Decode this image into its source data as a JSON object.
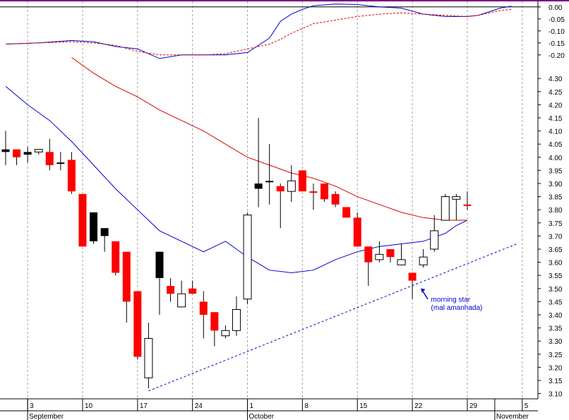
{
  "colors": {
    "background": "#ffffff",
    "grid": "#a0a0a0",
    "axis": "#000000",
    "top_border": "#800080",
    "up_candle": "#ffffff",
    "down_candle": "#ff0000",
    "neutral_candle": "#000000",
    "blue_line": "#0000cc",
    "red_line": "#dd0000",
    "trendline": "#0000cc",
    "annotation": "#0000cc"
  },
  "chart_data": [
    {
      "type": "line",
      "panel": "indicator",
      "ylim": [
        -0.23,
        0.02
      ],
      "y_ticks": [
        "0.00",
        "-0.05",
        "-0.10",
        "-0.15",
        "-0.20"
      ],
      "y_tick_values": [
        0.0,
        -0.05,
        -0.1,
        -0.15,
        -0.2
      ],
      "baseline": 0.0,
      "series": [
        {
          "style": "solid",
          "color": "#0000cc",
          "x": [
            0,
            3,
            6,
            8,
            10,
            12,
            14,
            16,
            17,
            18,
            20,
            22,
            24,
            25,
            26,
            27,
            28,
            30,
            32,
            34,
            36,
            38,
            40,
            42,
            43,
            44,
            45,
            46
          ],
          "y": [
            -0.155,
            -0.15,
            -0.14,
            -0.145,
            -0.165,
            -0.175,
            -0.215,
            -0.2,
            -0.2,
            -0.2,
            -0.2,
            -0.19,
            -0.13,
            -0.06,
            -0.03,
            -0.01,
            0.005,
            0.012,
            0.01,
            0.0,
            -0.005,
            -0.03,
            -0.04,
            -0.04,
            -0.035,
            -0.02,
            -0.005,
            0.003
          ]
        },
        {
          "style": "dashed",
          "color": "#dd0000",
          "x": [
            0,
            3,
            6,
            8,
            10,
            12,
            14,
            16,
            17,
            18,
            20,
            22,
            24,
            25,
            26,
            27,
            28,
            30,
            32,
            34,
            36,
            38,
            40,
            42,
            43,
            44,
            45,
            46
          ],
          "y": [
            -0.155,
            -0.15,
            -0.145,
            -0.15,
            -0.16,
            -0.185,
            -0.2,
            -0.2,
            -0.2,
            -0.2,
            -0.195,
            -0.175,
            -0.155,
            -0.135,
            -0.11,
            -0.09,
            -0.07,
            -0.055,
            -0.04,
            -0.03,
            -0.025,
            -0.03,
            -0.035,
            -0.04,
            -0.035,
            -0.025,
            -0.015,
            -0.01
          ]
        }
      ]
    },
    {
      "type": "candlestick",
      "panel": "price",
      "ylim": [
        3.08,
        4.33
      ],
      "y_ticks": [
        "4.30",
        "4.25",
        "4.20",
        "4.15",
        "4.10",
        "4.05",
        "4.00",
        "3.95",
        "3.90",
        "3.85",
        "3.80",
        "3.75",
        "3.70",
        "3.65",
        "3.60",
        "3.55",
        "3.50",
        "3.45",
        "3.40",
        "3.35",
        "3.30",
        "3.25",
        "3.20",
        "3.15",
        "3.10"
      ],
      "y_tick_values": [
        4.3,
        4.25,
        4.2,
        4.15,
        4.1,
        4.05,
        4.0,
        3.95,
        3.9,
        3.85,
        3.8,
        3.75,
        3.7,
        3.65,
        3.6,
        3.55,
        3.5,
        3.45,
        3.4,
        3.35,
        3.3,
        3.25,
        3.2,
        3.15,
        3.1
      ],
      "x_ticks": [
        {
          "x": 2.5,
          "label": "3"
        },
        {
          "x": 7.5,
          "label": "10"
        },
        {
          "x": 12.5,
          "label": "17"
        },
        {
          "x": 17.5,
          "label": "24"
        },
        {
          "x": 22.5,
          "label": "1"
        },
        {
          "x": 27.5,
          "label": "8"
        },
        {
          "x": 32.5,
          "label": "15"
        },
        {
          "x": 37.5,
          "label": "22"
        },
        {
          "x": 42.5,
          "label": "29"
        },
        {
          "x": 47.5,
          "label": "5"
        }
      ],
      "grid_x": [
        2,
        7,
        12,
        17,
        22,
        27,
        32,
        37,
        42,
        47
      ],
      "months": [
        {
          "x": 2.5,
          "label": "September"
        },
        {
          "x": 22.5,
          "label": "October"
        },
        {
          "x": 45,
          "label": "November"
        }
      ],
      "month_separators": [
        2.5,
        22.5,
        45
      ],
      "candles": [
        {
          "x": 0,
          "o": 4.03,
          "h": 4.1,
          "l": 3.97,
          "c": 4.02,
          "color": "black"
        },
        {
          "x": 1,
          "o": 4.03,
          "h": 4.03,
          "l": 3.97,
          "c": 4.0,
          "color": "red"
        },
        {
          "x": 2,
          "o": 4.02,
          "h": 4.04,
          "l": 3.98,
          "c": 4.01,
          "color": "black"
        },
        {
          "x": 3,
          "o": 4.02,
          "h": 4.03,
          "l": 4.01,
          "c": 4.03,
          "color": "white"
        },
        {
          "x": 4,
          "o": 4.02,
          "h": 4.07,
          "l": 3.95,
          "c": 3.97,
          "color": "red"
        },
        {
          "x": 5,
          "o": 3.98,
          "h": 4.02,
          "l": 3.95,
          "c": 3.98,
          "color": "black"
        },
        {
          "x": 6,
          "o": 3.99,
          "h": 4.02,
          "l": 3.86,
          "c": 3.87,
          "color": "red"
        },
        {
          "x": 7,
          "o": 3.86,
          "h": 3.86,
          "l": 3.66,
          "c": 3.66,
          "color": "red"
        },
        {
          "x": 8,
          "o": 3.79,
          "h": 3.79,
          "l": 3.67,
          "c": 3.68,
          "color": "black"
        },
        {
          "x": 9,
          "o": 3.73,
          "h": 3.73,
          "l": 3.64,
          "c": 3.7,
          "color": "black"
        },
        {
          "x": 10,
          "o": 3.68,
          "h": 3.68,
          "l": 3.55,
          "c": 3.56,
          "color": "red"
        },
        {
          "x": 11,
          "o": 3.64,
          "h": 3.64,
          "l": 3.37,
          "c": 3.45,
          "color": "red"
        },
        {
          "x": 12,
          "o": 3.49,
          "h": 3.49,
          "l": 3.23,
          "c": 3.24,
          "color": "red"
        },
        {
          "x": 13,
          "o": 3.16,
          "h": 3.37,
          "l": 3.12,
          "c": 3.31,
          "color": "white"
        },
        {
          "x": 14,
          "o": 3.64,
          "h": 3.64,
          "l": 3.4,
          "c": 3.54,
          "color": "black"
        },
        {
          "x": 15,
          "o": 3.51,
          "h": 3.54,
          "l": 3.45,
          "c": 3.48,
          "color": "red"
        },
        {
          "x": 16,
          "o": 3.43,
          "h": 3.53,
          "l": 3.43,
          "c": 3.48,
          "color": "white"
        },
        {
          "x": 17,
          "o": 3.5,
          "h": 3.53,
          "l": 3.48,
          "c": 3.48,
          "color": "red"
        },
        {
          "x": 18,
          "o": 3.45,
          "h": 3.49,
          "l": 3.31,
          "c": 3.4,
          "color": "red"
        },
        {
          "x": 19,
          "o": 3.41,
          "h": 3.41,
          "l": 3.28,
          "c": 3.34,
          "color": "red"
        },
        {
          "x": 20,
          "o": 3.32,
          "h": 3.36,
          "l": 3.31,
          "c": 3.34,
          "color": "white"
        },
        {
          "x": 21,
          "o": 3.34,
          "h": 3.47,
          "l": 3.32,
          "c": 3.42,
          "color": "white"
        },
        {
          "x": 22,
          "o": 3.46,
          "h": 3.79,
          "l": 3.44,
          "c": 3.78,
          "color": "white"
        },
        {
          "x": 23,
          "o": 3.88,
          "h": 4.15,
          "l": 3.81,
          "c": 3.9,
          "color": "black"
        },
        {
          "x": 24,
          "o": 3.91,
          "h": 4.05,
          "l": 3.82,
          "c": 3.91,
          "color": "black"
        },
        {
          "x": 25,
          "o": 3.89,
          "h": 3.9,
          "l": 3.73,
          "c": 3.87,
          "color": "red"
        },
        {
          "x": 26,
          "o": 3.87,
          "h": 3.97,
          "l": 3.83,
          "c": 3.91,
          "color": "white"
        },
        {
          "x": 27,
          "o": 3.95,
          "h": 3.95,
          "l": 3.87,
          "c": 3.87,
          "color": "red"
        },
        {
          "x": 28,
          "o": 3.87,
          "h": 3.9,
          "l": 3.8,
          "c": 3.87,
          "color": "red"
        },
        {
          "x": 29,
          "o": 3.9,
          "h": 3.9,
          "l": 3.83,
          "c": 3.84,
          "color": "red"
        },
        {
          "x": 30,
          "o": 3.86,
          "h": 3.87,
          "l": 3.81,
          "c": 3.82,
          "color": "red"
        },
        {
          "x": 31,
          "o": 3.81,
          "h": 3.81,
          "l": 3.77,
          "c": 3.77,
          "color": "red"
        },
        {
          "x": 32,
          "o": 3.77,
          "h": 3.79,
          "l": 3.66,
          "c": 3.66,
          "color": "red"
        },
        {
          "x": 33,
          "o": 3.66,
          "h": 3.66,
          "l": 3.51,
          "c": 3.6,
          "color": "red"
        },
        {
          "x": 34,
          "o": 3.61,
          "h": 3.68,
          "l": 3.6,
          "c": 3.63,
          "color": "white"
        },
        {
          "x": 35,
          "o": 3.65,
          "h": 3.65,
          "l": 3.6,
          "c": 3.62,
          "color": "red"
        },
        {
          "x": 36,
          "o": 3.59,
          "h": 3.67,
          "l": 3.59,
          "c": 3.61,
          "color": "white"
        },
        {
          "x": 37,
          "o": 3.56,
          "h": 3.56,
          "l": 3.46,
          "c": 3.53,
          "color": "red"
        },
        {
          "x": 38,
          "o": 3.59,
          "h": 3.65,
          "l": 3.58,
          "c": 3.62,
          "color": "white"
        },
        {
          "x": 39,
          "o": 3.65,
          "h": 3.78,
          "l": 3.64,
          "c": 3.72,
          "color": "white"
        },
        {
          "x": 40,
          "o": 3.76,
          "h": 3.86,
          "l": 3.76,
          "c": 3.85,
          "color": "white"
        },
        {
          "x": 41,
          "o": 3.85,
          "h": 3.86,
          "l": 3.76,
          "c": 3.84,
          "color": "white"
        },
        {
          "x": 42,
          "o": 3.82,
          "h": 3.87,
          "l": 3.8,
          "c": 3.82,
          "color": "red"
        }
      ],
      "series": [
        {
          "style": "solid",
          "color": "#0000cc",
          "x": [
            0,
            2,
            4,
            6,
            8,
            10,
            12,
            14,
            16,
            18,
            20,
            22,
            24,
            26,
            28,
            30,
            32,
            34,
            36,
            38,
            40,
            41,
            42
          ],
          "y": [
            4.27,
            4.2,
            4.14,
            4.06,
            3.97,
            3.88,
            3.8,
            3.72,
            3.68,
            3.64,
            3.68,
            3.62,
            3.57,
            3.56,
            3.57,
            3.61,
            3.64,
            3.66,
            3.67,
            3.68,
            3.71,
            3.74,
            3.76
          ]
        },
        {
          "style": "solid",
          "color": "#dd0000",
          "x": [
            6,
            8,
            10,
            12,
            14,
            16,
            18,
            20,
            22,
            24,
            26,
            28,
            30,
            32,
            34,
            36,
            38,
            40,
            41,
            42
          ],
          "y": [
            4.38,
            4.32,
            4.27,
            4.23,
            4.18,
            4.14,
            4.1,
            4.05,
            4.0,
            3.97,
            3.94,
            3.92,
            3.89,
            3.85,
            3.82,
            3.79,
            3.77,
            3.76,
            3.76,
            3.76
          ]
        }
      ],
      "trendline": {
        "x1": 13,
        "y1": 3.11,
        "x2": 46.5,
        "y2": 3.67
      },
      "annotations": [
        {
          "text": "morning star",
          "x": 38.7,
          "y": 3.46
        },
        {
          "text": "(mal amanhada)",
          "x": 38.7,
          "y": 3.43
        }
      ],
      "arrow": {
        "from_x": 38.4,
        "from_y": 3.46,
        "to_x": 37.8,
        "to_y": 3.5
      }
    }
  ]
}
